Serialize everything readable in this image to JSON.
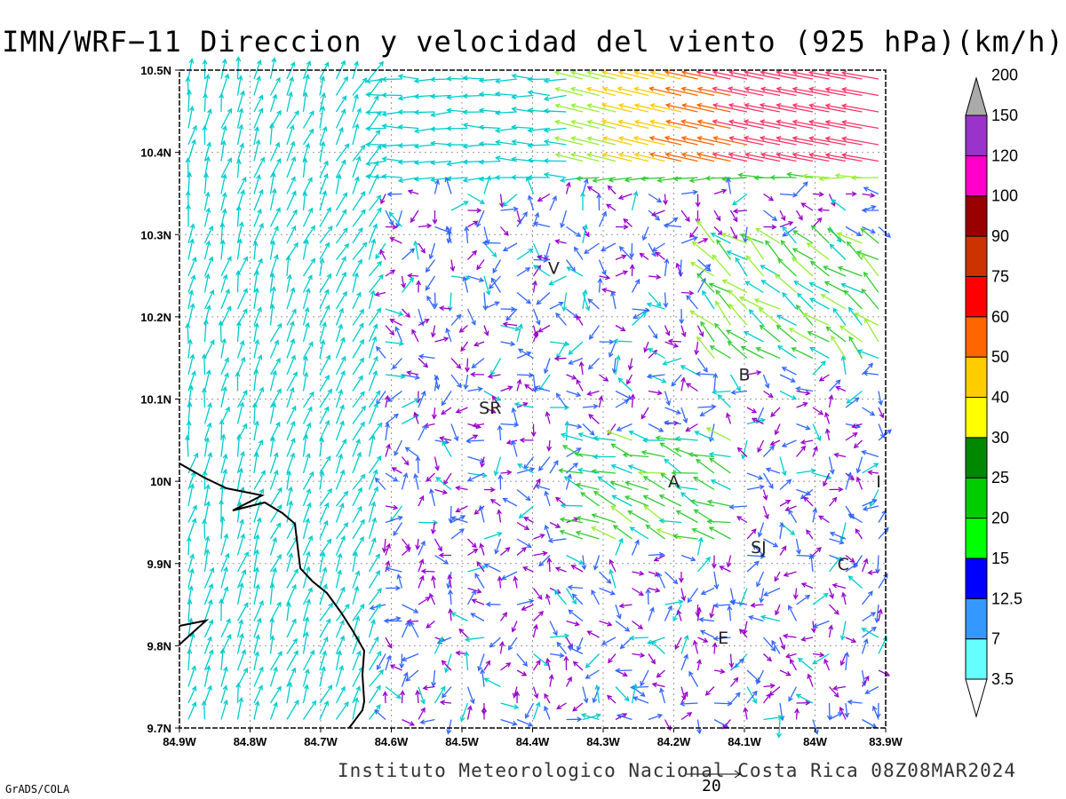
{
  "title": "IMN/WRF−11 Direccion y velocidad del viento (925 hPa)(km/h)",
  "credit": "Instituto Meteorologico Nacional Costa Rica 08Z08MAR2024",
  "software": "GrADS/COLA",
  "reference_vector": {
    "value": "20"
  },
  "map": {
    "lon_range": [
      -84.9,
      -83.9
    ],
    "lat_range": [
      9.7,
      10.5
    ],
    "grid": "dotted",
    "x_ticks": [
      "84.9W",
      "84.8W",
      "84.7W",
      "84.6W",
      "84.5W",
      "84.4W",
      "84.3W",
      "84.2W",
      "84.1W",
      "84W",
      "83.9W"
    ],
    "y_ticks": [
      "10.5N",
      "10.4N",
      "10.3N",
      "10.2N",
      "10.1N",
      "10N",
      "9.9N",
      "9.8N",
      "9.7N"
    ],
    "labels": [
      {
        "text": "V",
        "lon": -84.37,
        "lat": 10.26
      },
      {
        "text": "SR",
        "lon": -84.46,
        "lat": 10.09
      },
      {
        "text": "B",
        "lon": -84.1,
        "lat": 10.13
      },
      {
        "text": "A",
        "lon": -84.2,
        "lat": 10.0
      },
      {
        "text": "I",
        "lon": -83.91,
        "lat": 10.0
      },
      {
        "text": "SJ",
        "lon": -84.08,
        "lat": 9.92
      },
      {
        "text": "C",
        "lon": -83.96,
        "lat": 9.9
      },
      {
        "text": "E",
        "lon": -84.13,
        "lat": 9.81
      }
    ]
  },
  "legend": {
    "levels": [
      "3.5",
      "7",
      "12.5",
      "15",
      "20",
      "25",
      "30",
      "40",
      "50",
      "60",
      "75",
      "90",
      "100",
      "120",
      "150",
      "200"
    ],
    "colors": [
      "#66ffff",
      "#3399ff",
      "#0000ff",
      "#00ff00",
      "#00cc00",
      "#008800",
      "#ffff00",
      "#ffcc00",
      "#ff6600",
      "#ff0000",
      "#cc3300",
      "#990000",
      "#ff00cc",
      "#9933cc",
      "#f5f5f5",
      "#aaaaaa"
    ],
    "arrow_color": "#aaaaaa"
  },
  "wind_palette": {
    "calm": "#9900cc",
    "light": "#3366ff",
    "moderate": "#00cccc",
    "fresh": "#33cc33",
    "strong": "#99ee33",
    "gale": "#ffcc00",
    "storm": "#ff6600",
    "extreme": "#ff3366"
  }
}
